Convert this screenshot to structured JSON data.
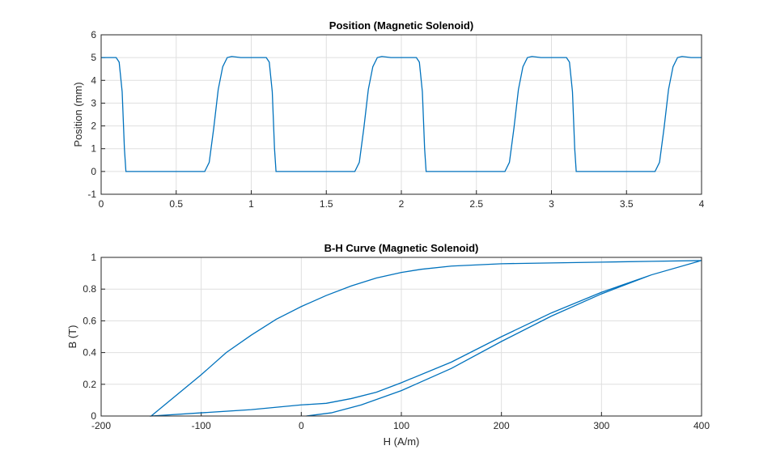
{
  "chart_data": [
    {
      "type": "line",
      "title": "Position (Magnetic Solenoid)",
      "ylabel": "Position (mm)",
      "xlim": [
        0,
        4
      ],
      "ylim": [
        -1,
        6
      ],
      "xticks": [
        0,
        0.5,
        1,
        1.5,
        2,
        2.5,
        3,
        3.5,
        4
      ],
      "yticks": [
        -1,
        0,
        1,
        2,
        3,
        4,
        5,
        6
      ],
      "grid": true,
      "series": [
        {
          "color": "#0072bd",
          "x": [
            0,
            0.1,
            0.12,
            0.14,
            0.155,
            0.165,
            0.69,
            0.72,
            0.75,
            0.78,
            0.81,
            0.84,
            0.87,
            0.93,
            1.1,
            1.12,
            1.14,
            1.155,
            1.165,
            1.69,
            1.72,
            1.75,
            1.78,
            1.81,
            1.84,
            1.87,
            1.93,
            2.1,
            2.12,
            2.14,
            2.155,
            2.165,
            2.69,
            2.72,
            2.75,
            2.78,
            2.81,
            2.84,
            2.87,
            2.93,
            3.1,
            3.12,
            3.14,
            3.155,
            3.165,
            3.69,
            3.72,
            3.75,
            3.78,
            3.81,
            3.84,
            3.87,
            3.93,
            4
          ],
          "values": [
            5,
            5,
            4.8,
            3.5,
            1,
            0,
            0,
            0.4,
            1.9,
            3.6,
            4.6,
            5,
            5.05,
            5,
            5,
            4.8,
            3.5,
            1,
            0,
            0,
            0.4,
            1.9,
            3.6,
            4.6,
            5,
            5.05,
            5,
            5,
            4.8,
            3.5,
            1,
            0,
            0,
            0.4,
            1.9,
            3.6,
            4.6,
            5,
            5.05,
            5,
            5,
            4.8,
            3.5,
            1,
            0,
            0,
            0.4,
            1.9,
            3.6,
            4.6,
            5,
            5.05,
            5,
            5
          ]
        }
      ]
    },
    {
      "type": "line",
      "title": "B-H Curve (Magnetic Solenoid)",
      "xlabel": "H (A/m)",
      "ylabel": "B (T)",
      "xlim": [
        -200,
        400
      ],
      "ylim": [
        0,
        1
      ],
      "xticks": [
        -200,
        -100,
        0,
        100,
        200,
        300,
        400
      ],
      "yticks": [
        0,
        0.2,
        0.4,
        0.6,
        0.8,
        1
      ],
      "grid": true,
      "series": [
        {
          "color": "#0072bd",
          "x": [
            5,
            30,
            60,
            100,
            150,
            200,
            250,
            300,
            350,
            400,
            350,
            300,
            250,
            200,
            150,
            120,
            100,
            75,
            50,
            25,
            0,
            -25,
            -50,
            -75,
            -100,
            -125,
            -150,
            -100,
            -50,
            0,
            25,
            50,
            75,
            100,
            150,
            200,
            250,
            300,
            350,
            400
          ],
          "values": [
            0,
            0.02,
            0.07,
            0.16,
            0.3,
            0.47,
            0.63,
            0.77,
            0.89,
            0.98,
            0.975,
            0.97,
            0.965,
            0.96,
            0.945,
            0.925,
            0.905,
            0.87,
            0.82,
            0.76,
            0.69,
            0.61,
            0.51,
            0.4,
            0.26,
            0.13,
            0,
            0.02,
            0.04,
            0.07,
            0.08,
            0.11,
            0.15,
            0.21,
            0.34,
            0.5,
            0.65,
            0.78,
            0.89,
            0.98
          ]
        }
      ]
    }
  ]
}
